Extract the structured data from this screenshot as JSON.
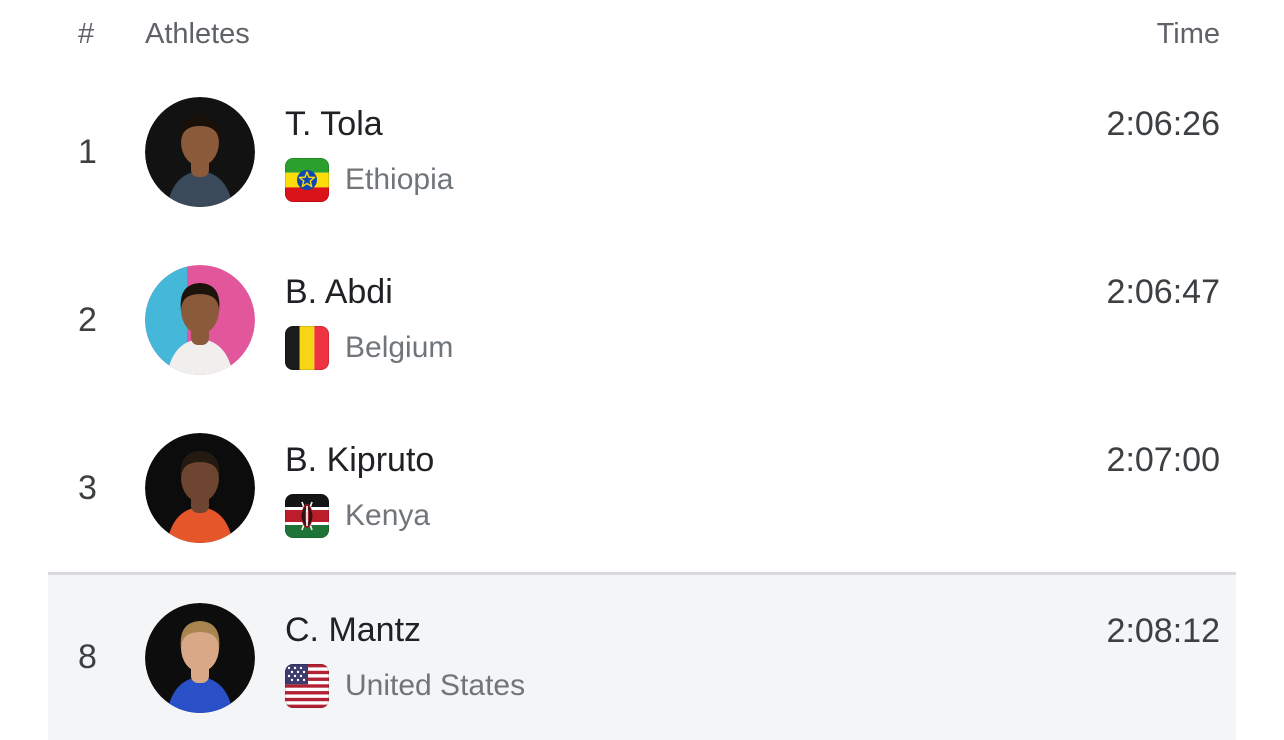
{
  "leaderboard": {
    "headers": {
      "rank": "#",
      "athletes": "Athletes",
      "time": "Time"
    },
    "rows": [
      {
        "rank": "1",
        "name": "T. Tola",
        "country": "Ethiopia",
        "flag": "ethiopia",
        "time": "2:06:26",
        "highlighted": false,
        "avatar": {
          "bg": "#121212",
          "bg2": "",
          "skin": "#8a5a3b",
          "hair": "#191009",
          "shirt": "#3a4a5a"
        }
      },
      {
        "rank": "2",
        "name": "B. Abdi",
        "country": "Belgium",
        "flag": "belgium",
        "time": "2:06:47",
        "highlighted": false,
        "avatar": {
          "bg": "#e2569b",
          "bg2": "#45b7d9",
          "skin": "#8a5a3b",
          "hair": "#1c130b",
          "shirt": "#f1efed"
        }
      },
      {
        "rank": "3",
        "name": "B. Kipruto",
        "country": "Kenya",
        "flag": "kenya",
        "time": "2:07:00",
        "highlighted": false,
        "avatar": {
          "bg": "#0c0c0c",
          "bg2": "",
          "skin": "#6d4530",
          "hair": "#241a12",
          "shirt": "#e5562a"
        }
      },
      {
        "rank": "8",
        "name": "C. Mantz",
        "country": "United States",
        "flag": "united-states",
        "time": "2:08:12",
        "highlighted": true,
        "avatar": {
          "bg": "#0d0d0d",
          "bg2": "",
          "skin": "#d9a886",
          "hair": "#a8844f",
          "shirt": "#2a50c8"
        }
      }
    ],
    "colors": {
      "highlight_bg": "#f4f5f6",
      "divider": "#d8dade",
      "header_text": "#5f6368",
      "primary_text": "#202124",
      "secondary_text": "#70757a",
      "time_text": "#3c4043"
    }
  }
}
